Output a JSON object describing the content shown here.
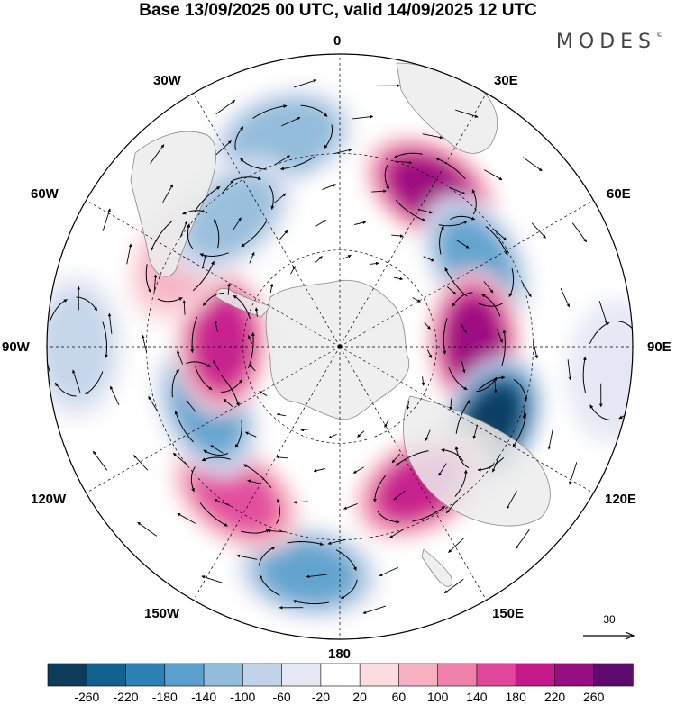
{
  "title": "Base 13/09/2025 00 UTC, valid 14/09/2025 12 UTC",
  "brand": "MODES",
  "brand_mark": "©",
  "map": {
    "projection": "south-polar-stereographic",
    "longitude_labels": {
      "lon_0": "0",
      "lon_30e": "30E",
      "lon_60e": "60E",
      "lon_90e": "90E",
      "lon_120e": "120E",
      "lon_150e": "150E",
      "lon_180": "180",
      "lon_150w": "150W",
      "lon_120w": "120W",
      "lon_90w": "90W",
      "lon_60w": "60W",
      "lon_30w": "30W"
    },
    "vector_reference": "30",
    "land_color": "#ececec",
    "coast_color": "#888888",
    "anomaly_centers": [
      {
        "lon": 30,
        "lat_index": 0.62,
        "value": 220
      },
      {
        "lon": 345,
        "lat_index": 0.74,
        "value": -140
      },
      {
        "lon": 58,
        "lat_index": 0.55,
        "value": -160
      },
      {
        "lon": 88,
        "lat_index": 0.46,
        "value": 220
      },
      {
        "lon": 117,
        "lat_index": 0.58,
        "value": -280
      },
      {
        "lon": 150,
        "lat_index": 0.55,
        "value": 200
      },
      {
        "lon": 188,
        "lat_index": 0.78,
        "value": -160
      },
      {
        "lon": 215,
        "lat_index": 0.62,
        "value": 140
      },
      {
        "lon": 245,
        "lat_index": 0.5,
        "value": -160
      },
      {
        "lon": 272,
        "lat_index": 0.4,
        "value": 200
      },
      {
        "lon": 300,
        "lat_index": 0.62,
        "value": 80
      },
      {
        "lon": 320,
        "lat_index": 0.58,
        "value": -120
      },
      {
        "lon": 270,
        "lat_index": 0.9,
        "value": -80
      },
      {
        "lon": 95,
        "lat_index": 0.94,
        "value": -60
      }
    ]
  },
  "colorbar": {
    "ticks": [
      "-260",
      "-220",
      "-180",
      "-140",
      "-100",
      "-60",
      "-20",
      "20",
      "60",
      "100",
      "140",
      "180",
      "220",
      "260"
    ],
    "colors": [
      "#0d3b5c",
      "#11628f",
      "#2c80b5",
      "#5b9fcc",
      "#92bcdc",
      "#c1d3e9",
      "#e5e8f4",
      "#ffffff",
      "#fbdde0",
      "#f6b0c1",
      "#ef7fab",
      "#e0479c",
      "#c3198b",
      "#960e7f",
      "#5d0b6e"
    ]
  }
}
